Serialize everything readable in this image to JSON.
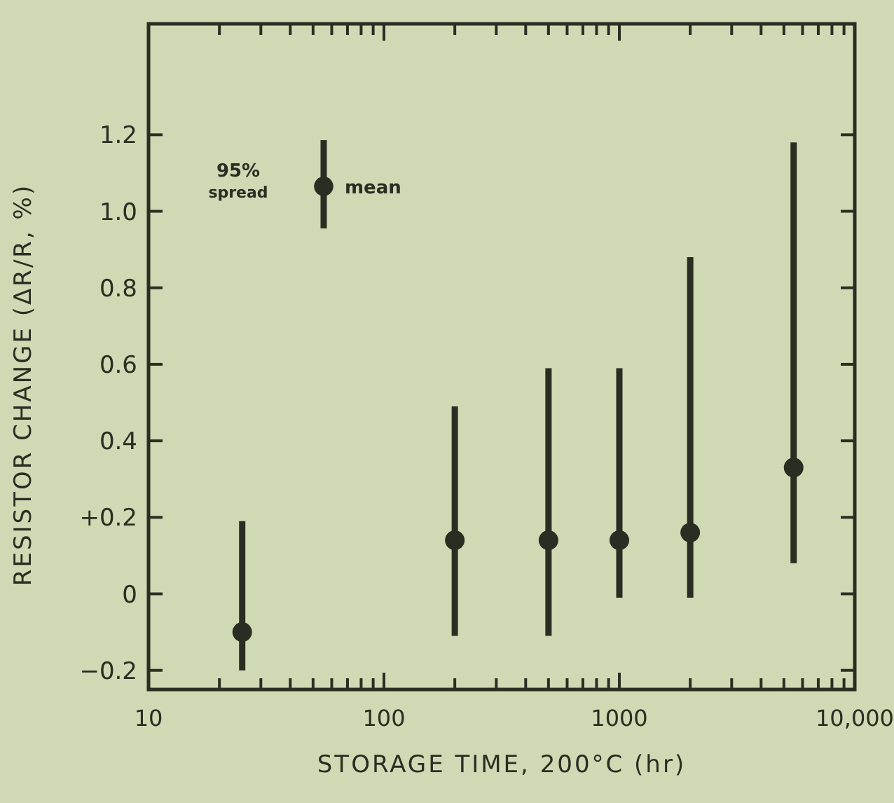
{
  "chart_data": {
    "type": "scatter",
    "xlabel": "STORAGE TIME, 200°C (hr)",
    "ylabel": "RESISTOR CHANGE (ΔR/R, %)",
    "log": "x",
    "marker": "circle",
    "grid": false,
    "x": [
      25,
      200,
      500,
      1000,
      2000,
      5500
    ],
    "series": [
      {
        "color": "#2a2e22",
        "values": [
          -0.1,
          0.14,
          0.14,
          0.14,
          0.16,
          0.33
        ],
        "errors": [
          [
            -0.2,
            0.19
          ],
          [
            -0.11,
            0.49
          ],
          [
            -0.11,
            0.59
          ],
          [
            -0.01,
            0.59
          ],
          [
            -0.01,
            0.88
          ],
          [
            0.08,
            1.18
          ]
        ]
      }
    ],
    "xlim": [
      10,
      10000
    ],
    "ylim": [
      -0.25,
      1.49
    ],
    "xticks": [
      10,
      {
        "value": 20,
        "label": null
      },
      {
        "value": 30,
        "label": null
      },
      {
        "value": 40,
        "label": null
      },
      {
        "value": 50,
        "label": null
      },
      {
        "value": 60,
        "label": null
      },
      {
        "value": 70,
        "label": null
      },
      {
        "value": 80,
        "label": null
      },
      {
        "value": 90,
        "label": null
      },
      100,
      {
        "value": 200,
        "label": null
      },
      {
        "value": 300,
        "label": null
      },
      {
        "value": 400,
        "label": null
      },
      {
        "value": 500,
        "label": null
      },
      {
        "value": 600,
        "label": null
      },
      {
        "value": 700,
        "label": null
      },
      {
        "value": 800,
        "label": null
      },
      {
        "value": 900,
        "label": null
      },
      1000,
      {
        "value": 2000,
        "label": null
      },
      {
        "value": 3000,
        "label": null
      },
      {
        "value": 4000,
        "label": null
      },
      {
        "value": 5000,
        "label": null
      },
      {
        "value": 6000,
        "label": null
      },
      {
        "value": 7000,
        "label": null
      },
      {
        "value": 8000,
        "label": null
      },
      {
        "value": 9000,
        "label": null
      },
      {
        "value": 10000,
        "label": "10,000"
      }
    ],
    "yticks": [
      {
        "value": -0.2,
        "label": "−0.2"
      },
      {
        "value": 0,
        "label": "0"
      },
      {
        "value": 0.2,
        "label": "+0.2"
      },
      {
        "value": 0.4,
        "label": "0.4"
      },
      {
        "value": 0.6,
        "label": "0.6"
      },
      {
        "value": 0.8,
        "label": "0.8"
      },
      {
        "value": 1.0,
        "label": "1.0"
      },
      {
        "value": 1.2,
        "label": "1.2"
      }
    ],
    "annotations": [
      "95% spread",
      "mean"
    ]
  }
}
